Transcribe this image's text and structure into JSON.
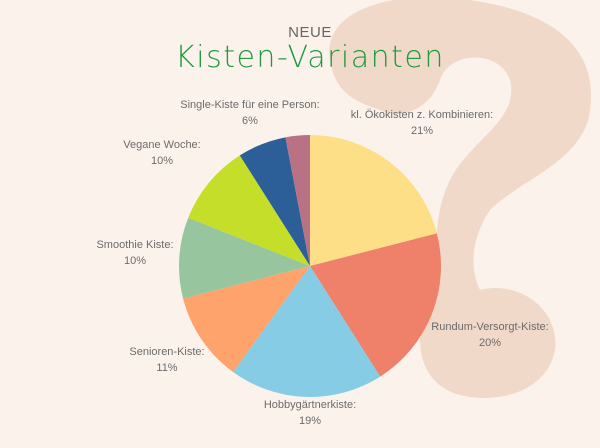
{
  "header": {
    "subtitle": "NEUE",
    "title": "Kisten-Varianten"
  },
  "chart_data": {
    "type": "pie",
    "start": "12 o'clock, clockwise",
    "slices": [
      {
        "label": "kl. Ökokisten z. Kombinieren:",
        "value_label": "21%",
        "value": 21,
        "color": "#fddf87"
      },
      {
        "label": "Rundum-Versorgt-Kiste:",
        "value_label": "20%",
        "value": 20,
        "color": "#ef8069"
      },
      {
        "label": "Hobbygärtnerkiste:",
        "value_label": "19%",
        "value": 19,
        "color": "#86cce4"
      },
      {
        "label": "Senioren-Kiste:",
        "value_label": "11%",
        "value": 11,
        "color": "#fea36c"
      },
      {
        "label": "Smoothie Kiste:",
        "value_label": "10%",
        "value": 10,
        "color": "#97c69e"
      },
      {
        "label": "Vegane Woche:",
        "value_label": "10%",
        "value": 10,
        "color": "#c5de2a"
      },
      {
        "label": "Single-Kiste für eine Person:",
        "value_label": "6%",
        "value": 6,
        "color": "#2c5f98"
      },
      {
        "label": "",
        "value_label": "",
        "value": 3,
        "color": "#b97284"
      }
    ]
  },
  "colors": {
    "background": "#fcf2ec",
    "decoration": "#f0d9c8",
    "title": "#1f9a3c"
  }
}
